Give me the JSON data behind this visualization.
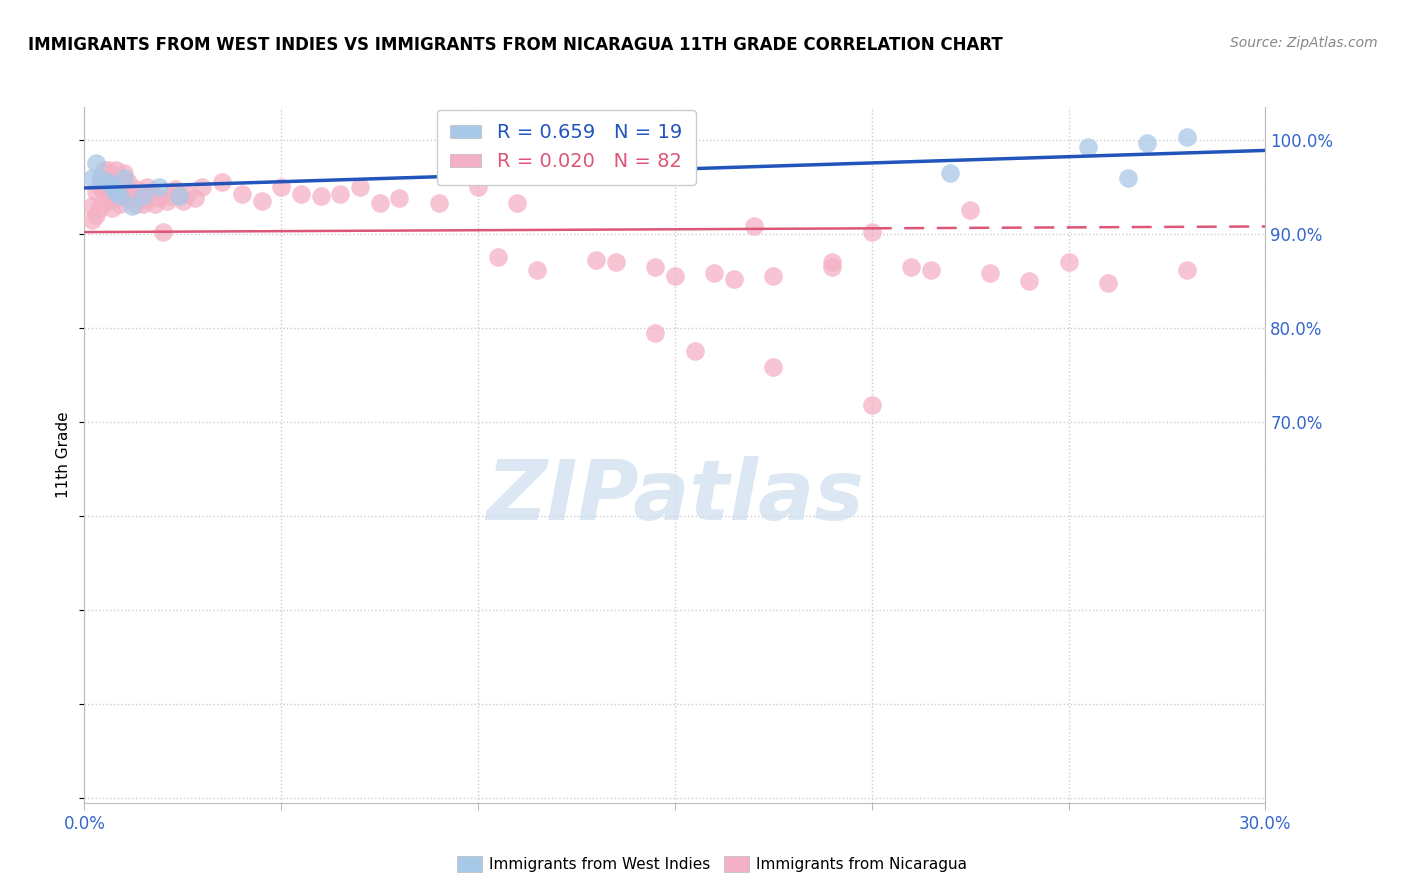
{
  "title": "IMMIGRANTS FROM WEST INDIES VS IMMIGRANTS FROM NICARAGUA 11TH GRADE CORRELATION CHART",
  "source": "Source: ZipAtlas.com",
  "ylabel": "11th Grade",
  "legend_blue_R": "R = 0.659",
  "legend_blue_N": "N = 19",
  "legend_pink_R": "R = 0.020",
  "legend_pink_N": "N = 82",
  "legend_label_blue": "Immigrants from West Indies",
  "legend_label_pink": "Immigrants from Nicaragua",
  "xmin": 0.0,
  "xmax": 0.3,
  "ymin": 0.295,
  "ymax": 1.035,
  "yticks": [
    0.3,
    0.4,
    0.5,
    0.6,
    0.7,
    0.8,
    0.9,
    1.0
  ],
  "xticks": [
    0.0,
    0.05,
    0.1,
    0.15,
    0.2,
    0.25,
    0.3
  ],
  "watermark": "ZIPatlas",
  "blue_color": "#A8C8E8",
  "pink_color": "#F4B0C4",
  "trendline_blue": "#2255BB",
  "trendline_pink": "#DD5577",
  "blue_x": [
    0.002,
    0.003,
    0.004,
    0.006,
    0.007,
    0.008,
    0.009,
    0.01,
    0.012,
    0.015,
    0.019,
    0.024,
    0.12,
    0.15,
    0.22,
    0.255,
    0.265,
    0.27,
    0.28
  ],
  "blue_y": [
    0.96,
    0.975,
    0.96,
    0.955,
    0.95,
    0.945,
    0.94,
    0.96,
    0.93,
    0.94,
    0.95,
    0.94,
    0.968,
    0.962,
    0.965,
    0.993,
    0.96,
    0.997,
    1.003
  ],
  "pink_x": [
    0.002,
    0.002,
    0.003,
    0.003,
    0.004,
    0.004,
    0.005,
    0.005,
    0.005,
    0.006,
    0.006,
    0.006,
    0.007,
    0.007,
    0.008,
    0.008,
    0.008,
    0.009,
    0.009,
    0.01,
    0.01,
    0.011,
    0.011,
    0.012,
    0.013,
    0.013,
    0.014,
    0.015,
    0.015,
    0.016,
    0.016,
    0.017,
    0.018,
    0.019,
    0.02,
    0.021,
    0.022,
    0.023,
    0.024,
    0.025,
    0.026,
    0.028,
    0.03,
    0.035,
    0.04,
    0.045,
    0.05,
    0.055,
    0.06,
    0.065,
    0.07,
    0.075,
    0.08,
    0.09,
    0.1,
    0.11,
    0.12,
    0.17,
    0.2,
    0.225,
    0.165,
    0.15,
    0.135,
    0.115,
    0.105,
    0.145,
    0.16,
    0.13,
    0.175,
    0.19,
    0.21,
    0.23,
    0.25,
    0.19,
    0.215,
    0.24,
    0.26,
    0.28,
    0.145,
    0.155,
    0.175,
    0.2
  ],
  "pink_y": [
    0.93,
    0.915,
    0.945,
    0.92,
    0.95,
    0.928,
    0.958,
    0.945,
    0.968,
    0.935,
    0.952,
    0.968,
    0.928,
    0.945,
    0.938,
    0.952,
    0.968,
    0.932,
    0.944,
    0.95,
    0.965,
    0.938,
    0.955,
    0.942,
    0.932,
    0.948,
    0.938,
    0.945,
    0.932,
    0.95,
    0.936,
    0.945,
    0.932,
    0.938,
    0.902,
    0.935,
    0.94,
    0.948,
    0.942,
    0.935,
    0.942,
    0.938,
    0.95,
    0.955,
    0.943,
    0.935,
    0.95,
    0.943,
    0.94,
    0.943,
    0.95,
    0.933,
    0.938,
    0.933,
    0.95,
    0.933,
    0.975,
    0.908,
    0.902,
    0.925,
    0.852,
    0.855,
    0.87,
    0.862,
    0.875,
    0.865,
    0.858,
    0.872,
    0.855,
    0.865,
    0.865,
    0.858,
    0.87,
    0.87,
    0.862,
    0.85,
    0.848,
    0.862,
    0.795,
    0.775,
    0.758,
    0.718
  ]
}
